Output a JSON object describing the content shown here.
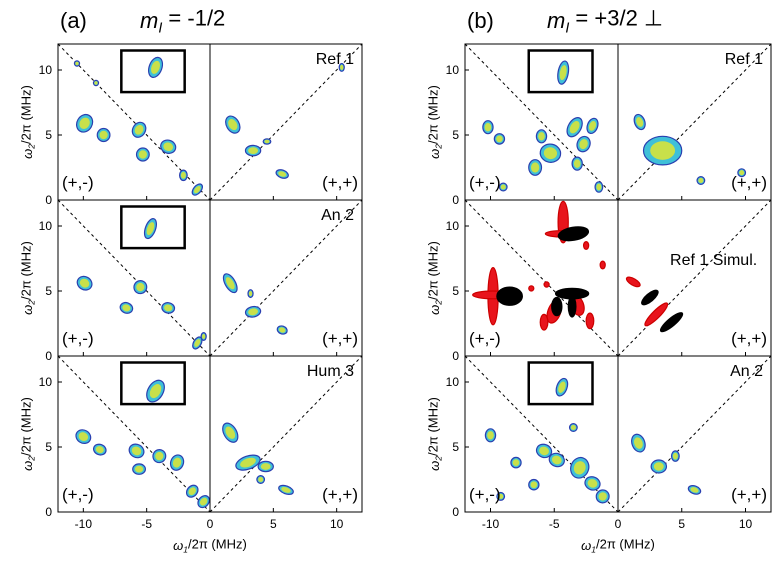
{
  "figure": {
    "xlabel": {
      "symbol": "ω",
      "sub": "1",
      "text": "/2π (MHz)"
    },
    "ylabel": {
      "symbol": "ω",
      "sub": "2",
      "text": "/2π (MHz)"
    },
    "xlim": [
      -12,
      12
    ],
    "ylim": [
      0,
      12
    ],
    "xticks": [
      -10,
      -5,
      0,
      5,
      10
    ],
    "yticks": [
      0,
      5,
      10
    ]
  },
  "panels": [
    {
      "label": "(a)",
      "title": {
        "symbol": "m",
        "sub": "I",
        "text": " = -1/2"
      },
      "rows": [
        {
          "name": "Ref 1",
          "left": "(+,-)",
          "right": "(+,+)"
        },
        {
          "name": "An 2",
          "left": "(+,-)",
          "right": "(+,+)"
        },
        {
          "name": "Hum 3",
          "left": "(+,-)",
          "right": "(+,+)"
        }
      ]
    },
    {
      "label": "(b)",
      "title": {
        "symbol": "m",
        "sub": "I",
        "text": " = +3/2 ⊥"
      },
      "rows": [
        {
          "name": "Ref 1",
          "left": "(+,-)",
          "right": "(+,+)"
        },
        {
          "name": "Ref 1 Simul.",
          "left": "(+,-)",
          "right": "(+,+)"
        },
        {
          "name": "An 2",
          "left": "(+,-)",
          "right": "(+,+)"
        }
      ]
    }
  ]
}
